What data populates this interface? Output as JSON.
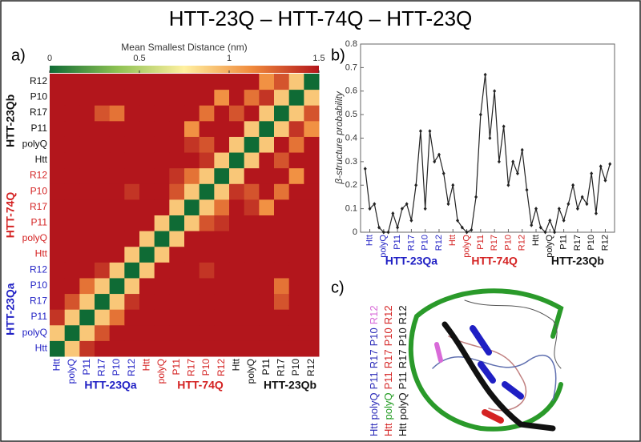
{
  "title": "HTT-23Q – HTT-74Q – HTT-23Q",
  "chart_data": [
    {
      "type": "heatmap",
      "panel_label": "a)",
      "colorbar_title": "Mean Smallest Distance (nm)",
      "zlim": [
        0,
        1.5
      ],
      "colorbar_ticks": [
        0,
        0.5,
        1,
        1.5
      ],
      "colormap": [
        "#0f6b35",
        "#8cc152",
        "#fff0a0",
        "#f08a3c",
        "#b3161c"
      ],
      "categories": [
        "Htt",
        "polyQ",
        "P11",
        "R17",
        "P10",
        "R12",
        "Htt",
        "polyQ",
        "P11",
        "R17",
        "P10",
        "R12",
        "Htt",
        "polyQ",
        "P11",
        "R17",
        "P10",
        "R12"
      ],
      "groups": [
        {
          "name": "HTT-23Qa",
          "color": "#1f1fc4"
        },
        {
          "name": "HTT-74Q",
          "color": "#d42222"
        },
        {
          "name": "HTT-23Qb",
          "color": "#111111"
        }
      ],
      "matrix": [
        [
          0,
          0.9,
          1.4,
          1.5,
          1.5,
          1.5,
          1.5,
          1.5,
          1.5,
          1.5,
          1.5,
          1.5,
          1.5,
          1.5,
          1.5,
          1.5,
          1.5,
          1.5
        ],
        [
          0.9,
          0,
          0.9,
          1.3,
          1.5,
          1.5,
          1.5,
          1.5,
          1.5,
          1.5,
          1.5,
          1.5,
          1.5,
          1.5,
          1.5,
          1.5,
          1.5,
          1.5
        ],
        [
          1.4,
          0.9,
          0,
          0.9,
          1.2,
          1.5,
          1.5,
          1.5,
          1.5,
          1.5,
          1.5,
          1.5,
          1.5,
          1.5,
          1.5,
          1.5,
          1.5,
          1.5
        ],
        [
          1.5,
          1.3,
          0.9,
          0,
          0.9,
          1.4,
          1.5,
          1.5,
          1.5,
          1.5,
          1.5,
          1.5,
          1.5,
          1.5,
          1.5,
          1.3,
          1.5,
          1.5
        ],
        [
          1.5,
          1.5,
          1.2,
          0.9,
          0,
          0.9,
          1.5,
          1.5,
          1.5,
          1.5,
          1.5,
          1.5,
          1.5,
          1.5,
          1.5,
          1.2,
          1.5,
          1.5
        ],
        [
          1.5,
          1.5,
          1.5,
          1.4,
          0.9,
          0,
          0.9,
          1.5,
          1.5,
          1.5,
          1.4,
          1.5,
          1.5,
          1.5,
          1.5,
          1.5,
          1.5,
          1.5
        ],
        [
          1.5,
          1.5,
          1.5,
          1.5,
          1.5,
          0.9,
          0,
          0.9,
          1.5,
          1.5,
          1.5,
          1.5,
          1.5,
          1.5,
          1.5,
          1.5,
          1.5,
          1.5
        ],
        [
          1.5,
          1.5,
          1.5,
          1.5,
          1.5,
          1.5,
          0.9,
          0,
          0.9,
          1.5,
          1.5,
          1.5,
          1.5,
          1.5,
          1.5,
          1.5,
          1.5,
          1.5
        ],
        [
          1.5,
          1.5,
          1.5,
          1.5,
          1.5,
          1.5,
          1.5,
          0.9,
          0,
          0.9,
          1.3,
          1.4,
          1.5,
          1.5,
          1.5,
          1.5,
          1.5,
          1.5
        ],
        [
          1.5,
          1.5,
          1.5,
          1.5,
          1.5,
          1.5,
          1.5,
          1.5,
          0.9,
          0,
          0.9,
          1.2,
          1.5,
          1.4,
          1.1,
          1.5,
          1.5,
          1.5
        ],
        [
          1.5,
          1.5,
          1.5,
          1.5,
          1.5,
          1.4,
          1.5,
          1.5,
          1.3,
          0.9,
          0,
          0.9,
          1.4,
          1.3,
          1.5,
          1.2,
          1.5,
          1.5
        ],
        [
          1.5,
          1.5,
          1.5,
          1.5,
          1.5,
          1.5,
          1.5,
          1.5,
          1.4,
          1.2,
          0.9,
          0,
          0.9,
          1.5,
          1.5,
          1.5,
          1.1,
          1.5
        ],
        [
          1.5,
          1.5,
          1.5,
          1.5,
          1.5,
          1.5,
          1.5,
          1.5,
          1.5,
          1.5,
          1.4,
          0.9,
          0,
          0.9,
          1.5,
          1.3,
          1.5,
          1.5
        ],
        [
          1.5,
          1.5,
          1.5,
          1.5,
          1.5,
          1.5,
          1.5,
          1.5,
          1.5,
          1.4,
          1.3,
          1.5,
          0.9,
          0,
          0.9,
          1.5,
          1.2,
          1.5
        ],
        [
          1.5,
          1.5,
          1.5,
          1.5,
          1.5,
          1.5,
          1.5,
          1.5,
          1.5,
          1.1,
          1.5,
          1.5,
          1.5,
          0.9,
          0,
          0.9,
          1.4,
          1.1
        ],
        [
          1.5,
          1.5,
          1.5,
          1.3,
          1.2,
          1.5,
          1.5,
          1.5,
          1.5,
          1.5,
          1.2,
          1.5,
          1.3,
          1.5,
          0.9,
          0,
          0.9,
          1.3
        ],
        [
          1.5,
          1.5,
          1.5,
          1.5,
          1.5,
          1.5,
          1.5,
          1.5,
          1.5,
          1.5,
          1.5,
          1.1,
          1.5,
          1.2,
          1.4,
          0.9,
          0,
          0.9
        ],
        [
          1.5,
          1.5,
          1.5,
          1.5,
          1.5,
          1.5,
          1.5,
          1.5,
          1.5,
          1.5,
          1.5,
          1.5,
          1.5,
          1.5,
          1.1,
          1.3,
          0.9,
          0
        ]
      ]
    },
    {
      "type": "line",
      "panel_label": "b)",
      "ylabel": "β-structure probability",
      "color": "#222222",
      "xlim": [
        0,
        55
      ],
      "ylim": [
        0,
        0.8
      ],
      "yticks": [
        0,
        0.1,
        0.2,
        0.3,
        0.4,
        0.5,
        0.6,
        0.7,
        0.8
      ],
      "groups": [
        {
          "name": "HTT-23Qa",
          "color": "#1f1fc4"
        },
        {
          "name": "HTT-74Q",
          "color": "#d42222"
        },
        {
          "name": "HTT-23Qb",
          "color": "#111111"
        }
      ],
      "xticks": [
        {
          "value": 2,
          "label": "Htt"
        },
        {
          "value": 5,
          "label": "polyQ"
        },
        {
          "value": 8,
          "label": "P11"
        },
        {
          "value": 11,
          "label": "R17"
        },
        {
          "value": 14,
          "label": "P10"
        },
        {
          "value": 17,
          "label": "R12"
        },
        {
          "value": 20,
          "label": "Htt"
        },
        {
          "value": 23,
          "label": "polyQ"
        },
        {
          "value": 26,
          "label": "P11"
        },
        {
          "value": 29,
          "label": "R17"
        },
        {
          "value": 32,
          "label": "P10"
        },
        {
          "value": 35,
          "label": "R12"
        },
        {
          "value": 38,
          "label": "Htt"
        },
        {
          "value": 41,
          "label": "polyQ"
        },
        {
          "value": 44,
          "label": "P11"
        },
        {
          "value": 47,
          "label": "R17"
        },
        {
          "value": 50,
          "label": "P10"
        },
        {
          "value": 53,
          "label": "R12"
        }
      ],
      "x": [
        1,
        2,
        3,
        4,
        5,
        6,
        7,
        8,
        9,
        10,
        11,
        12,
        13,
        14,
        15,
        16,
        17,
        18,
        19,
        20,
        21,
        22,
        23,
        24,
        25,
        26,
        27,
        28,
        29,
        30,
        31,
        32,
        33,
        34,
        35,
        36,
        37,
        38,
        39,
        40,
        41,
        42,
        43,
        44,
        45,
        46,
        47,
        48,
        49,
        50,
        51,
        52,
        53,
        54
      ],
      "values": [
        0.27,
        0.1,
        0.12,
        0.02,
        0,
        0,
        0.08,
        0.02,
        0.1,
        0.12,
        0.05,
        0.2,
        0.43,
        0.1,
        0.43,
        0.3,
        0.33,
        0.25,
        0.12,
        0.2,
        0.05,
        0.02,
        0,
        0.01,
        0.15,
        0.5,
        0.67,
        0.4,
        0.6,
        0.3,
        0.45,
        0.2,
        0.3,
        0.25,
        0.35,
        0.18,
        0.03,
        0.1,
        0.02,
        0,
        0.05,
        0,
        0.1,
        0.05,
        0.12,
        0.2,
        0.1,
        0.15,
        0.12,
        0.25,
        0.08,
        0.28,
        0.22,
        0.29
      ]
    }
  ],
  "panel_c": {
    "label": "c)",
    "legend_lines": [
      [
        {
          "text": "Htt",
          "color": "#2a2ab8"
        },
        {
          "text": "polyQ",
          "color": "#2a2ab8"
        },
        {
          "text": "P11",
          "color": "#2a2ab8"
        },
        {
          "text": "R17",
          "color": "#2a2ab8"
        },
        {
          "text": "P10",
          "color": "#2a2ab8"
        },
        {
          "text": "R12",
          "color": "#d86ad8"
        }
      ],
      [
        {
          "text": "Htt",
          "color": "#d42222"
        },
        {
          "text": "polyQ",
          "color": "#1f9a1f"
        },
        {
          "text": "P11",
          "color": "#d42222"
        },
        {
          "text": "R17",
          "color": "#d42222"
        },
        {
          "text": "P10",
          "color": "#d42222"
        },
        {
          "text": "R12",
          "color": "#d42222"
        }
      ],
      [
        {
          "text": "Htt",
          "color": "#111111"
        },
        {
          "text": "polyQ",
          "color": "#111111"
        },
        {
          "text": "P11",
          "color": "#111111"
        },
        {
          "text": "R17",
          "color": "#111111"
        },
        {
          "text": "P10",
          "color": "#111111"
        },
        {
          "text": "R12",
          "color": "#111111"
        }
      ]
    ]
  }
}
